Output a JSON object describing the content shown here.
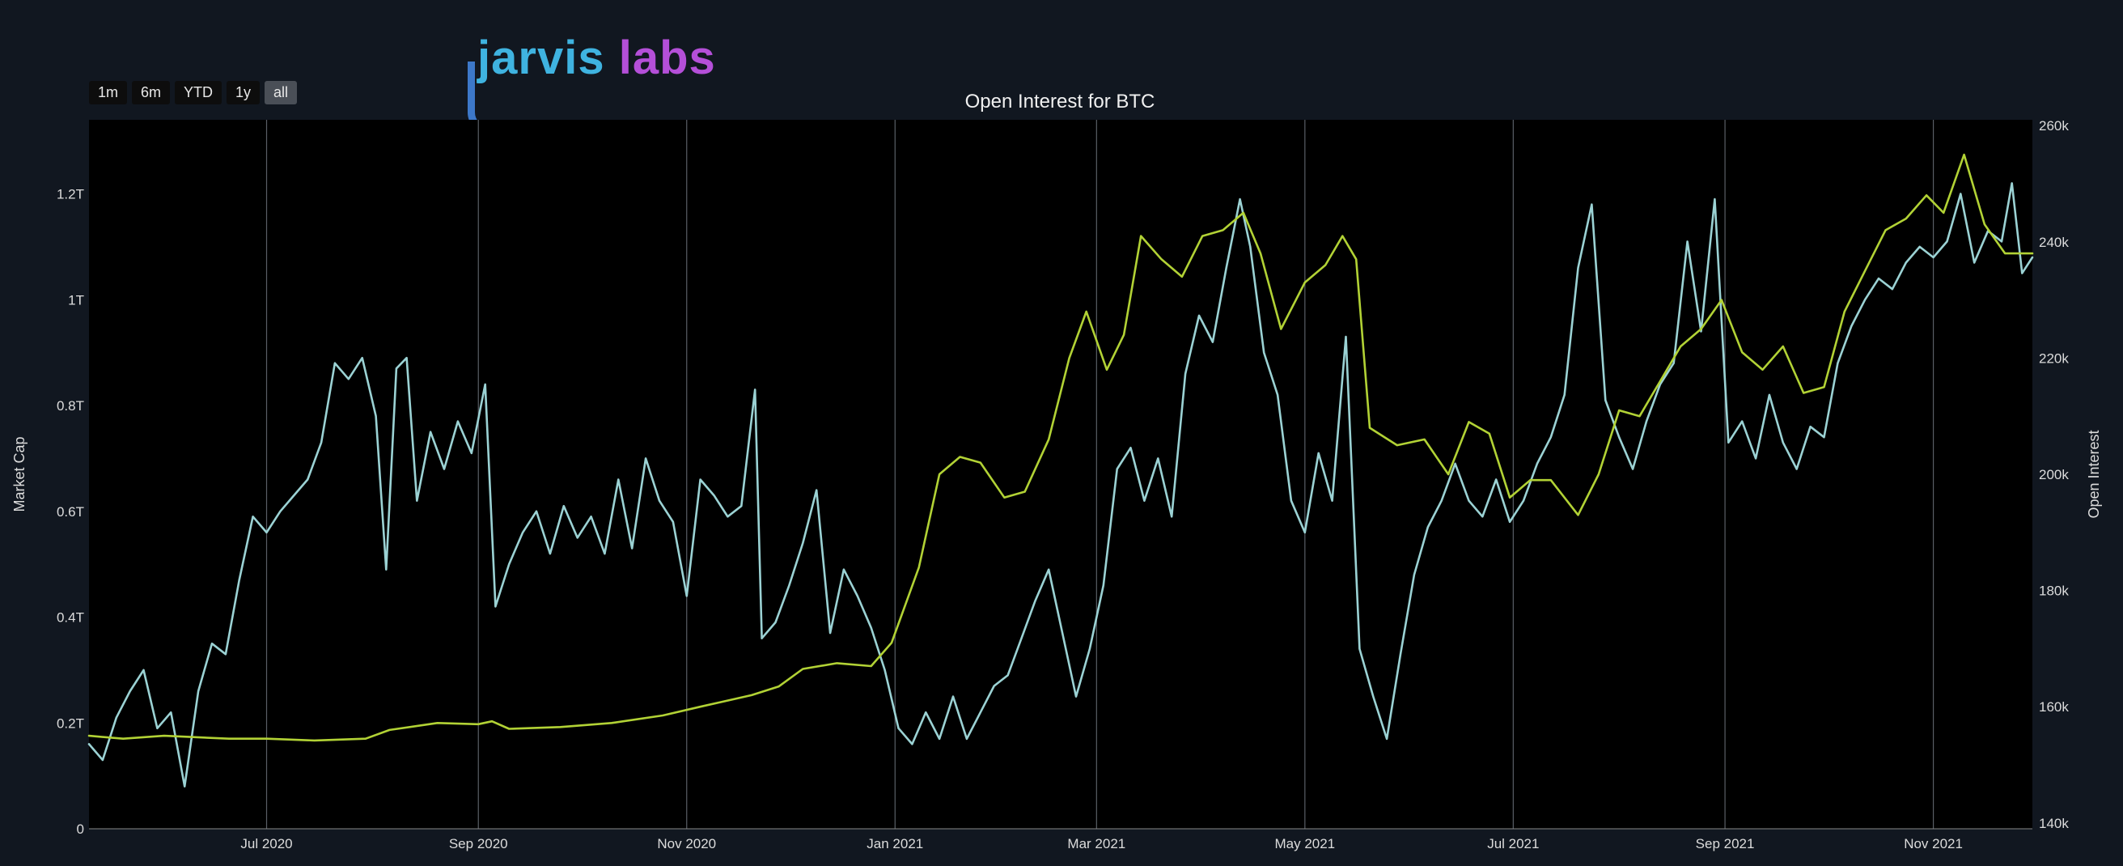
{
  "brand": {
    "logo_text_1": "jarvis",
    "logo_text_2": "labs"
  },
  "range_selector": [
    {
      "label": "1m",
      "active": false
    },
    {
      "label": "6m",
      "active": false
    },
    {
      "label": "YTD",
      "active": false
    },
    {
      "label": "1y",
      "active": false
    },
    {
      "label": "all",
      "active": true
    }
  ],
  "colors": {
    "market_cap": "#9bd2d4",
    "open_interest": "#b2d235",
    "grid": "#5a5f66",
    "plot_bg": "#000000",
    "page_bg": "#111720"
  },
  "chart_data": {
    "type": "line",
    "title": "Open Interest for BTC",
    "xlabel": "",
    "ylabel": "Market Cap",
    "y2label": "Open Interest",
    "x_range": [
      "2020-05-10",
      "2021-11-30"
    ],
    "x_ticks": [
      {
        "date": "2020-07-01",
        "label": "Jul 2020"
      },
      {
        "date": "2020-09-01",
        "label": "Sep 2020"
      },
      {
        "date": "2020-11-01",
        "label": "Nov 2020"
      },
      {
        "date": "2021-01-01",
        "label": "Jan 2021"
      },
      {
        "date": "2021-03-01",
        "label": "Mar 2021"
      },
      {
        "date": "2021-05-01",
        "label": "May 2021"
      },
      {
        "date": "2021-07-01",
        "label": "Jul 2021"
      },
      {
        "date": "2021-09-01",
        "label": "Sep 2021"
      },
      {
        "date": "2021-11-01",
        "label": "Nov 2021"
      }
    ],
    "ylim": [
      0,
      1.34
    ],
    "y_ticks": [
      {
        "value": 0,
        "label": "0"
      },
      {
        "value": 0.2,
        "label": "0.2T"
      },
      {
        "value": 0.4,
        "label": "0.4T"
      },
      {
        "value": 0.6,
        "label": "0.6T"
      },
      {
        "value": 0.8,
        "label": "0.8T"
      },
      {
        "value": 1.0,
        "label": "1T"
      },
      {
        "value": 1.2,
        "label": "1.2T"
      }
    ],
    "y2lim": [
      139,
      261
    ],
    "y2_ticks": [
      {
        "value": 140,
        "label": "140k"
      },
      {
        "value": 160,
        "label": "160k"
      },
      {
        "value": 180,
        "label": "180k"
      },
      {
        "value": 200,
        "label": "200k"
      },
      {
        "value": 220,
        "label": "220k"
      },
      {
        "value": 240,
        "label": "240k"
      },
      {
        "value": 260,
        "label": "260k"
      }
    ],
    "grid": "vertical",
    "series": [
      {
        "name": "Market Cap",
        "axis": "left",
        "points": [
          [
            "2020-05-10",
            0.16
          ],
          [
            "2020-05-14",
            0.13
          ],
          [
            "2020-05-18",
            0.21
          ],
          [
            "2020-05-22",
            0.26
          ],
          [
            "2020-05-26",
            0.3
          ],
          [
            "2020-05-30",
            0.19
          ],
          [
            "2020-06-03",
            0.22
          ],
          [
            "2020-06-07",
            0.08
          ],
          [
            "2020-06-11",
            0.26
          ],
          [
            "2020-06-15",
            0.35
          ],
          [
            "2020-06-19",
            0.33
          ],
          [
            "2020-06-23",
            0.47
          ],
          [
            "2020-06-27",
            0.59
          ],
          [
            "2020-07-01",
            0.56
          ],
          [
            "2020-07-05",
            0.6
          ],
          [
            "2020-07-09",
            0.63
          ],
          [
            "2020-07-13",
            0.66
          ],
          [
            "2020-07-17",
            0.73
          ],
          [
            "2020-07-21",
            0.88
          ],
          [
            "2020-07-25",
            0.85
          ],
          [
            "2020-07-29",
            0.89
          ],
          [
            "2020-08-02",
            0.78
          ],
          [
            "2020-08-05",
            0.49
          ],
          [
            "2020-08-08",
            0.87
          ],
          [
            "2020-08-11",
            0.89
          ],
          [
            "2020-08-14",
            0.62
          ],
          [
            "2020-08-18",
            0.75
          ],
          [
            "2020-08-22",
            0.68
          ],
          [
            "2020-08-26",
            0.77
          ],
          [
            "2020-08-30",
            0.71
          ],
          [
            "2020-09-03",
            0.84
          ],
          [
            "2020-09-06",
            0.42
          ],
          [
            "2020-09-10",
            0.5
          ],
          [
            "2020-09-14",
            0.56
          ],
          [
            "2020-09-18",
            0.6
          ],
          [
            "2020-09-22",
            0.52
          ],
          [
            "2020-09-26",
            0.61
          ],
          [
            "2020-09-30",
            0.55
          ],
          [
            "2020-10-04",
            0.59
          ],
          [
            "2020-10-08",
            0.52
          ],
          [
            "2020-10-12",
            0.66
          ],
          [
            "2020-10-16",
            0.53
          ],
          [
            "2020-10-20",
            0.7
          ],
          [
            "2020-10-24",
            0.62
          ],
          [
            "2020-10-28",
            0.58
          ],
          [
            "2020-11-01",
            0.44
          ],
          [
            "2020-11-05",
            0.66
          ],
          [
            "2020-11-09",
            0.63
          ],
          [
            "2020-11-13",
            0.59
          ],
          [
            "2020-11-17",
            0.61
          ],
          [
            "2020-11-21",
            0.83
          ],
          [
            "2020-11-23",
            0.36
          ],
          [
            "2020-11-27",
            0.39
          ],
          [
            "2020-12-01",
            0.46
          ],
          [
            "2020-12-05",
            0.54
          ],
          [
            "2020-12-09",
            0.64
          ],
          [
            "2020-12-13",
            0.37
          ],
          [
            "2020-12-17",
            0.49
          ],
          [
            "2020-12-21",
            0.44
          ],
          [
            "2020-12-25",
            0.38
          ],
          [
            "2020-12-29",
            0.3
          ],
          [
            "2021-01-02",
            0.19
          ],
          [
            "2021-01-06",
            0.16
          ],
          [
            "2021-01-10",
            0.22
          ],
          [
            "2021-01-14",
            0.17
          ],
          [
            "2021-01-18",
            0.25
          ],
          [
            "2021-01-22",
            0.17
          ],
          [
            "2021-01-26",
            0.22
          ],
          [
            "2021-01-30",
            0.27
          ],
          [
            "2021-02-03",
            0.29
          ],
          [
            "2021-02-07",
            0.36
          ],
          [
            "2021-02-11",
            0.43
          ],
          [
            "2021-02-15",
            0.49
          ],
          [
            "2021-02-19",
            0.37
          ],
          [
            "2021-02-23",
            0.25
          ],
          [
            "2021-02-27",
            0.34
          ],
          [
            "2021-03-03",
            0.46
          ],
          [
            "2021-03-07",
            0.68
          ],
          [
            "2021-03-11",
            0.72
          ],
          [
            "2021-03-15",
            0.62
          ],
          [
            "2021-03-19",
            0.7
          ],
          [
            "2021-03-23",
            0.59
          ],
          [
            "2021-03-27",
            0.86
          ],
          [
            "2021-03-31",
            0.97
          ],
          [
            "2021-04-04",
            0.92
          ],
          [
            "2021-04-08",
            1.06
          ],
          [
            "2021-04-12",
            1.19
          ],
          [
            "2021-04-15",
            1.1
          ],
          [
            "2021-04-19",
            0.9
          ],
          [
            "2021-04-23",
            0.82
          ],
          [
            "2021-04-27",
            0.62
          ],
          [
            "2021-05-01",
            0.56
          ],
          [
            "2021-05-05",
            0.71
          ],
          [
            "2021-05-09",
            0.62
          ],
          [
            "2021-05-13",
            0.93
          ],
          [
            "2021-05-17",
            0.34
          ],
          [
            "2021-05-21",
            0.25
          ],
          [
            "2021-05-25",
            0.17
          ],
          [
            "2021-05-29",
            0.33
          ],
          [
            "2021-06-02",
            0.48
          ],
          [
            "2021-06-06",
            0.57
          ],
          [
            "2021-06-10",
            0.62
          ],
          [
            "2021-06-14",
            0.69
          ],
          [
            "2021-06-18",
            0.62
          ],
          [
            "2021-06-22",
            0.59
          ],
          [
            "2021-06-26",
            0.66
          ],
          [
            "2021-06-30",
            0.58
          ],
          [
            "2021-07-04",
            0.62
          ],
          [
            "2021-07-08",
            0.69
          ],
          [
            "2021-07-12",
            0.74
          ],
          [
            "2021-07-16",
            0.82
          ],
          [
            "2021-07-20",
            1.06
          ],
          [
            "2021-07-24",
            1.18
          ],
          [
            "2021-07-28",
            0.81
          ],
          [
            "2021-08-01",
            0.74
          ],
          [
            "2021-08-05",
            0.68
          ],
          [
            "2021-08-09",
            0.77
          ],
          [
            "2021-08-13",
            0.84
          ],
          [
            "2021-08-17",
            0.88
          ],
          [
            "2021-08-21",
            1.11
          ],
          [
            "2021-08-25",
            0.94
          ],
          [
            "2021-08-29",
            1.19
          ],
          [
            "2021-09-02",
            0.73
          ],
          [
            "2021-09-06",
            0.77
          ],
          [
            "2021-09-10",
            0.7
          ],
          [
            "2021-09-14",
            0.82
          ],
          [
            "2021-09-18",
            0.73
          ],
          [
            "2021-09-22",
            0.68
          ],
          [
            "2021-09-26",
            0.76
          ],
          [
            "2021-09-30",
            0.74
          ],
          [
            "2021-10-04",
            0.88
          ],
          [
            "2021-10-08",
            0.95
          ],
          [
            "2021-10-12",
            1.0
          ],
          [
            "2021-10-16",
            1.04
          ],
          [
            "2021-10-20",
            1.02
          ],
          [
            "2021-10-24",
            1.07
          ],
          [
            "2021-10-28",
            1.1
          ],
          [
            "2021-11-01",
            1.08
          ],
          [
            "2021-11-05",
            1.11
          ],
          [
            "2021-11-09",
            1.2
          ],
          [
            "2021-11-13",
            1.07
          ],
          [
            "2021-11-17",
            1.13
          ],
          [
            "2021-11-21",
            1.11
          ],
          [
            "2021-11-24",
            1.22
          ],
          [
            "2021-11-27",
            1.05
          ],
          [
            "2021-11-30",
            1.08
          ]
        ]
      },
      {
        "name": "Open Interest",
        "axis": "right",
        "points": [
          [
            "2020-05-10",
            155
          ],
          [
            "2020-05-20",
            154.5
          ],
          [
            "2020-06-01",
            155
          ],
          [
            "2020-06-20",
            154.5
          ],
          [
            "2020-07-01",
            154.5
          ],
          [
            "2020-07-15",
            154.2
          ],
          [
            "2020-07-30",
            154.5
          ],
          [
            "2020-08-06",
            156
          ],
          [
            "2020-08-20",
            157.2
          ],
          [
            "2020-09-01",
            157
          ],
          [
            "2020-09-05",
            157.5
          ],
          [
            "2020-09-10",
            156.2
          ],
          [
            "2020-09-25",
            156.5
          ],
          [
            "2020-10-10",
            157.2
          ],
          [
            "2020-10-25",
            158.5
          ],
          [
            "2020-11-05",
            160
          ],
          [
            "2020-11-20",
            162
          ],
          [
            "2020-11-28",
            163.5
          ],
          [
            "2020-12-05",
            166.5
          ],
          [
            "2020-12-15",
            167.5
          ],
          [
            "2020-12-25",
            167
          ],
          [
            "2020-12-31",
            171
          ],
          [
            "2021-01-08",
            184
          ],
          [
            "2021-01-14",
            200
          ],
          [
            "2021-01-20",
            203
          ],
          [
            "2021-01-26",
            202
          ],
          [
            "2021-02-02",
            196
          ],
          [
            "2021-02-08",
            197
          ],
          [
            "2021-02-15",
            206
          ],
          [
            "2021-02-21",
            220
          ],
          [
            "2021-02-26",
            228
          ],
          [
            "2021-03-04",
            218
          ],
          [
            "2021-03-09",
            224
          ],
          [
            "2021-03-14",
            241
          ],
          [
            "2021-03-20",
            237
          ],
          [
            "2021-03-26",
            234
          ],
          [
            "2021-04-01",
            241
          ],
          [
            "2021-04-07",
            242
          ],
          [
            "2021-04-13",
            245
          ],
          [
            "2021-04-18",
            238
          ],
          [
            "2021-04-24",
            225
          ],
          [
            "2021-05-01",
            233
          ],
          [
            "2021-05-07",
            236
          ],
          [
            "2021-05-12",
            241
          ],
          [
            "2021-05-16",
            237
          ],
          [
            "2021-05-20",
            208
          ],
          [
            "2021-05-28",
            205
          ],
          [
            "2021-06-05",
            206
          ],
          [
            "2021-06-12",
            200
          ],
          [
            "2021-06-18",
            209
          ],
          [
            "2021-06-24",
            207
          ],
          [
            "2021-06-30",
            196
          ],
          [
            "2021-07-06",
            199
          ],
          [
            "2021-07-12",
            199
          ],
          [
            "2021-07-20",
            193
          ],
          [
            "2021-07-26",
            200
          ],
          [
            "2021-08-01",
            211
          ],
          [
            "2021-08-07",
            210
          ],
          [
            "2021-08-13",
            216
          ],
          [
            "2021-08-19",
            222
          ],
          [
            "2021-08-25",
            225
          ],
          [
            "2021-08-31",
            230
          ],
          [
            "2021-09-06",
            221
          ],
          [
            "2021-09-12",
            218
          ],
          [
            "2021-09-18",
            222
          ],
          [
            "2021-09-24",
            214
          ],
          [
            "2021-09-30",
            215
          ],
          [
            "2021-10-06",
            228
          ],
          [
            "2021-10-12",
            235
          ],
          [
            "2021-10-18",
            242
          ],
          [
            "2021-10-24",
            244
          ],
          [
            "2021-10-30",
            248
          ],
          [
            "2021-11-04",
            245
          ],
          [
            "2021-11-10",
            255
          ],
          [
            "2021-11-16",
            243
          ],
          [
            "2021-11-22",
            238
          ],
          [
            "2021-11-30",
            238
          ]
        ]
      }
    ]
  }
}
